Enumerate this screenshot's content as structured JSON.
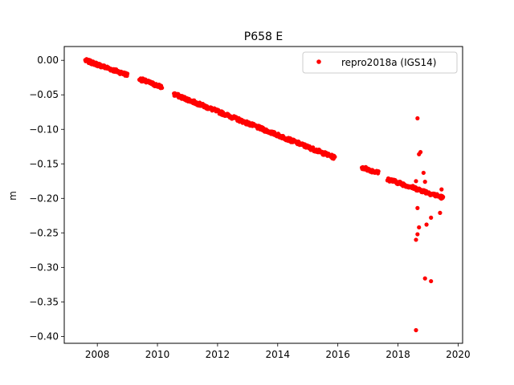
{
  "chart_data": {
    "type": "scatter",
    "title": "P658 E",
    "xlabel": "",
    "ylabel": "m",
    "xlim": [
      2006.9,
      2020.15
    ],
    "ylim": [
      -0.41,
      0.02
    ],
    "grid": false,
    "legend_position": "top-right",
    "x_ticks": [
      2008,
      2010,
      2012,
      2014,
      2016,
      2018,
      2020
    ],
    "x_tick_labels": [
      "2008",
      "2010",
      "2012",
      "2014",
      "2016",
      "2018",
      "2020"
    ],
    "y_ticks": [
      0.0,
      -0.05,
      -0.1,
      -0.15,
      -0.2,
      -0.25,
      -0.3,
      -0.35,
      -0.4
    ],
    "y_tick_labels": [
      "0.00",
      "−0.05",
      "−0.10",
      "−0.15",
      "−0.20",
      "−0.25",
      "−0.30",
      "−0.35",
      "−0.40"
    ],
    "series": [
      {
        "name": "repro2018a (IGS14)",
        "color": "#ff0000",
        "marker": "circle",
        "segments": [
          {
            "x_start": 2007.6,
            "x_end": 2009.0,
            "y_start": 0.0,
            "y_end": -0.021
          },
          {
            "x_start": 2009.4,
            "x_end": 2010.15,
            "y_start": -0.027,
            "y_end": -0.039
          },
          {
            "x_start": 2010.55,
            "x_end": 2015.9,
            "y_start": -0.049,
            "y_end": -0.141
          },
          {
            "x_start": 2016.8,
            "x_end": 2017.35,
            "y_start": -0.155,
            "y_end": -0.163
          },
          {
            "x_start": 2017.65,
            "x_end": 2019.5,
            "y_start": -0.172,
            "y_end": -0.199
          }
        ],
        "outliers": [
          {
            "x": 2018.65,
            "y": -0.084
          },
          {
            "x": 2018.75,
            "y": -0.133
          },
          {
            "x": 2018.7,
            "y": -0.136
          },
          {
            "x": 2018.85,
            "y": -0.163
          },
          {
            "x": 2018.6,
            "y": -0.175
          },
          {
            "x": 2018.9,
            "y": -0.176
          },
          {
            "x": 2019.45,
            "y": -0.187
          },
          {
            "x": 2018.65,
            "y": -0.214
          },
          {
            "x": 2019.4,
            "y": -0.221
          },
          {
            "x": 2019.1,
            "y": -0.228
          },
          {
            "x": 2018.95,
            "y": -0.238
          },
          {
            "x": 2018.7,
            "y": -0.242
          },
          {
            "x": 2018.65,
            "y": -0.252
          },
          {
            "x": 2018.6,
            "y": -0.26
          },
          {
            "x": 2018.9,
            "y": -0.316
          },
          {
            "x": 2019.1,
            "y": -0.32
          },
          {
            "x": 2018.6,
            "y": -0.391
          }
        ]
      }
    ]
  }
}
